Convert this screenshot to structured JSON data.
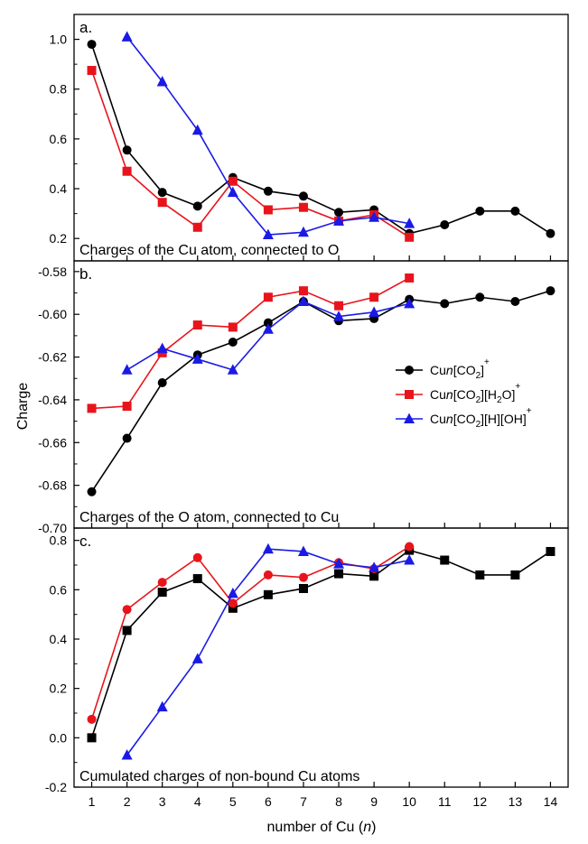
{
  "chart_data": {
    "type": "line",
    "ylabel": "Charge",
    "xlabel": "number of Cu (n)",
    "x": [
      1,
      2,
      3,
      4,
      5,
      6,
      7,
      8,
      9,
      10,
      11,
      12,
      13,
      14
    ],
    "xlim": [
      0.5,
      14.5
    ],
    "legend": {
      "placement": "right",
      "entries": [
        {
          "parts": [
            "Cu",
            "n",
            "[CO",
            "2",
            "]",
            "+"
          ],
          "kinds": [
            "n",
            "i",
            "n",
            "sub",
            "n",
            "sup"
          ]
        },
        {
          "parts": [
            "Cu",
            "n",
            "[CO",
            "2",
            "][H",
            "2",
            "O]",
            "+"
          ],
          "kinds": [
            "n",
            "i",
            "n",
            "sub",
            "n",
            "sub",
            "n",
            "sup"
          ]
        },
        {
          "parts": [
            "Cu",
            "n",
            "[CO",
            "2",
            "][H][OH]",
            "+"
          ],
          "kinds": [
            "n",
            "i",
            "n",
            "sub",
            "n",
            "sup"
          ]
        }
      ]
    },
    "colors": {
      "black": "#000000",
      "red": "#e8141c",
      "blue": "#1a1ae6"
    },
    "panels": [
      {
        "label": "a.",
        "title": "Charges of the Cu atom, connected to O",
        "ylim": [
          0.11,
          1.1
        ],
        "yticks": [
          0.2,
          0.4,
          0.6,
          0.8,
          1.0
        ],
        "yticklabels": [
          "0.2",
          "0.4",
          "0.6",
          "0.8",
          "1.0"
        ],
        "series": [
          {
            "color": "black",
            "marker": "circle",
            "x": [
              1,
              2,
              3,
              4,
              5,
              6,
              7,
              8,
              9,
              10,
              11,
              12,
              13,
              14
            ],
            "values": [
              0.98,
              0.555,
              0.385,
              0.33,
              0.445,
              0.39,
              0.37,
              0.305,
              0.315,
              0.22,
              0.255,
              0.31,
              0.31,
              0.22
            ]
          },
          {
            "color": "red",
            "marker": "square",
            "x": [
              1,
              2,
              3,
              4,
              5,
              6,
              7,
              8,
              9,
              10
            ],
            "values": [
              0.875,
              0.47,
              0.345,
              0.245,
              0.43,
              0.315,
              0.325,
              0.27,
              0.295,
              0.205
            ]
          },
          {
            "color": "blue",
            "marker": "triangle",
            "x": [
              2,
              3,
              4,
              5,
              6,
              7,
              8,
              9,
              10
            ],
            "values": [
              1.01,
              0.83,
              0.635,
              0.385,
              0.215,
              0.225,
              0.27,
              0.285,
              0.26
            ]
          }
        ]
      },
      {
        "label": "b.",
        "title": "Charges of the O atom, connected to Cu",
        "ylim": [
          -0.7,
          -0.575
        ],
        "yticks": [
          -0.58,
          -0.6,
          -0.62,
          -0.64,
          -0.66,
          -0.68,
          -0.7
        ],
        "yticklabels": [
          "-0.58",
          "-0.60",
          "-0.62",
          "-0.64",
          "-0.66",
          "-0.68",
          "-0.70"
        ],
        "series": [
          {
            "color": "black",
            "marker": "circle",
            "x": [
              1,
              2,
              3,
              4,
              5,
              6,
              7,
              8,
              9,
              10,
              11,
              12,
              13,
              14
            ],
            "values": [
              -0.683,
              -0.658,
              -0.632,
              -0.619,
              -0.613,
              -0.604,
              -0.594,
              -0.603,
              -0.602,
              -0.593,
              -0.595,
              -0.592,
              -0.594,
              -0.589
            ]
          },
          {
            "color": "red",
            "marker": "square",
            "x": [
              1,
              2,
              3,
              4,
              5,
              6,
              7,
              8,
              9,
              10
            ],
            "values": [
              -0.644,
              -0.643,
              -0.618,
              -0.605,
              -0.606,
              -0.592,
              -0.589,
              -0.596,
              -0.592,
              -0.583
            ]
          },
          {
            "color": "blue",
            "marker": "triangle",
            "x": [
              2,
              3,
              4,
              5,
              6,
              7,
              8,
              9,
              10
            ],
            "values": [
              -0.626,
              -0.616,
              -0.621,
              -0.626,
              -0.607,
              -0.594,
              -0.601,
              -0.599,
              -0.595
            ]
          }
        ]
      },
      {
        "label": "c.",
        "title": "Cumulated charges of non-bound Cu atoms",
        "ylim": [
          -0.2,
          0.85
        ],
        "yticks": [
          -0.2,
          0.0,
          0.2,
          0.4,
          0.6,
          0.8
        ],
        "yticklabels": [
          "-0.2",
          "0.0",
          "0.2",
          "0.4",
          "0.6",
          "0.8"
        ],
        "xticks": [
          1,
          2,
          3,
          4,
          5,
          6,
          7,
          8,
          9,
          10,
          11,
          12,
          13,
          14
        ],
        "series": [
          {
            "color": "black",
            "marker": "square",
            "x": [
              1,
              2,
              3,
              4,
              5,
              6,
              7,
              8,
              9,
              10,
              11,
              12,
              13,
              14
            ],
            "values": [
              0.0,
              0.435,
              0.59,
              0.645,
              0.525,
              0.58,
              0.605,
              0.665,
              0.655,
              0.76,
              0.72,
              0.66,
              0.66,
              0.755
            ]
          },
          {
            "color": "red",
            "marker": "circle",
            "x": [
              1,
              2,
              3,
              4,
              5,
              6,
              7,
              8,
              9,
              10
            ],
            "values": [
              0.075,
              0.52,
              0.63,
              0.73,
              0.545,
              0.66,
              0.65,
              0.71,
              0.685,
              0.775
            ]
          },
          {
            "color": "blue",
            "marker": "triangle",
            "x": [
              2,
              3,
              4,
              5,
              6,
              7,
              8,
              9,
              10
            ],
            "values": [
              -0.07,
              0.125,
              0.32,
              0.585,
              0.765,
              0.755,
              0.705,
              0.69,
              0.72
            ]
          }
        ]
      }
    ]
  }
}
